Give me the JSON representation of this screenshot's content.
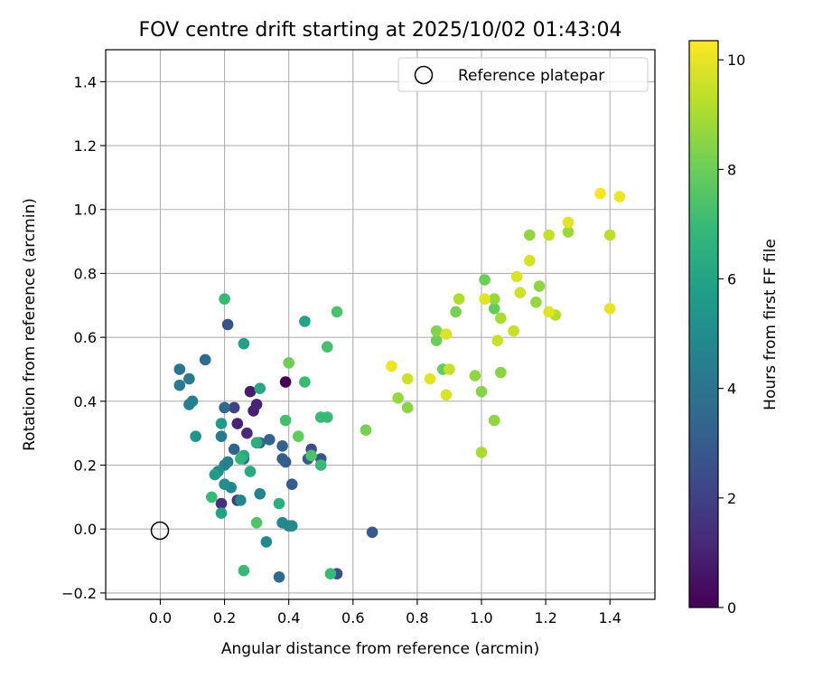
{
  "chart_data": {
    "type": "scatter",
    "title": "FOV centre drift starting at 2025/10/02 01:43:04",
    "xlabel": "Angular distance from reference (arcmin)",
    "ylabel": "Rotation from reference (arcmin)",
    "xlim": [
      -0.17,
      1.54
    ],
    "ylim": [
      -0.22,
      1.5
    ],
    "xticks": [
      0.0,
      0.2,
      0.4,
      0.6,
      0.8,
      1.0,
      1.2,
      1.4
    ],
    "xtick_labels": [
      "0.0",
      "0.2",
      "0.4",
      "0.6",
      "0.8",
      "1.0",
      "1.2",
      "1.4"
    ],
    "yticks": [
      -0.2,
      0.0,
      0.2,
      0.4,
      0.6,
      0.8,
      1.0,
      1.2,
      1.4
    ],
    "ytick_labels": [
      "−0.2",
      "0.0",
      "0.2",
      "0.4",
      "0.6",
      "0.8",
      "1.0",
      "1.2",
      "1.4"
    ],
    "grid": true,
    "legend": {
      "position": "top-right",
      "entries": [
        {
          "label": "Reference platepar",
          "marker": "open-circle"
        }
      ]
    },
    "reference_point": {
      "x": 0.0,
      "y": 0.0,
      "label": "Reference platepar"
    },
    "colorbar": {
      "label": "Hours from first FF file",
      "colormap": "viridis",
      "range": [
        0,
        10.35
      ],
      "ticks": [
        0,
        2,
        4,
        6,
        8,
        10
      ],
      "tick_labels": [
        "0",
        "2",
        "4",
        "6",
        "8",
        "10"
      ]
    },
    "colormap_stops": [
      "#440154",
      "#482878",
      "#3e4989",
      "#31688e",
      "#26828e",
      "#1f9e89",
      "#35b779",
      "#6ece58",
      "#b5de2b",
      "#fde725"
    ],
    "points": [
      [
        0.39,
        0.46,
        0.0
      ],
      [
        0.24,
        0.33,
        1.0
      ],
      [
        0.28,
        0.43,
        0.8
      ],
      [
        0.29,
        0.37,
        0.9
      ],
      [
        0.3,
        0.39,
        1.0
      ],
      [
        0.3,
        0.27,
        1.2
      ],
      [
        0.24,
        0.09,
        1.6
      ],
      [
        0.19,
        0.08,
        1.4
      ],
      [
        0.27,
        0.3,
        1.3
      ],
      [
        0.23,
        0.38,
        2.0
      ],
      [
        0.21,
        0.64,
        2.6
      ],
      [
        0.47,
        0.25,
        2.4
      ],
      [
        0.5,
        0.22,
        2.7
      ],
      [
        0.55,
        -0.14,
        2.5
      ],
      [
        0.66,
        -0.01,
        2.9
      ],
      [
        0.41,
        0.14,
        3.0
      ],
      [
        0.39,
        0.21,
        3.0
      ],
      [
        0.38,
        0.22,
        3.1
      ],
      [
        0.46,
        0.22,
        3.0
      ],
      [
        0.23,
        0.25,
        3.2
      ],
      [
        0.34,
        0.28,
        3.3
      ],
      [
        0.38,
        0.26,
        3.2
      ],
      [
        0.31,
        0.27,
        3.3
      ],
      [
        0.26,
        0.22,
        3.5
      ],
      [
        0.37,
        -0.15,
        3.6
      ],
      [
        0.2,
        0.38,
        3.4
      ],
      [
        0.14,
        0.53,
        3.6
      ],
      [
        0.06,
        0.5,
        4.0
      ],
      [
        0.06,
        0.45,
        4.3
      ],
      [
        0.09,
        0.47,
        4.2
      ],
      [
        0.1,
        0.4,
        4.4
      ],
      [
        0.09,
        0.39,
        4.5
      ],
      [
        0.19,
        0.29,
        4.2
      ],
      [
        0.21,
        0.21,
        4.4
      ],
      [
        0.2,
        0.2,
        4.5
      ],
      [
        0.31,
        0.11,
        4.6
      ],
      [
        0.25,
        0.09,
        4.8
      ],
      [
        0.22,
        0.13,
        4.7
      ],
      [
        0.38,
        0.02,
        4.8
      ],
      [
        0.4,
        0.01,
        4.7
      ],
      [
        0.41,
        0.01,
        4.9
      ],
      [
        0.33,
        -0.04,
        4.9
      ],
      [
        0.18,
        0.18,
        5.0
      ],
      [
        0.2,
        0.14,
        5.1
      ],
      [
        0.11,
        0.29,
        5.4
      ],
      [
        0.19,
        0.33,
        5.6
      ],
      [
        0.17,
        0.17,
        5.7
      ],
      [
        0.19,
        0.05,
        5.9
      ],
      [
        0.26,
        0.58,
        5.9
      ],
      [
        0.45,
        0.65,
        6.0
      ],
      [
        0.31,
        0.44,
        6.1
      ],
      [
        0.26,
        0.23,
        6.3
      ],
      [
        0.28,
        0.18,
        6.3
      ],
      [
        0.37,
        0.08,
        6.5
      ],
      [
        0.3,
        0.27,
        6.5
      ],
      [
        0.2,
        0.72,
        7.0
      ],
      [
        0.25,
        0.22,
        6.7
      ],
      [
        0.16,
        0.1,
        7.0
      ],
      [
        0.26,
        -0.13,
        7.0
      ],
      [
        0.45,
        0.46,
        7.0
      ],
      [
        0.5,
        0.35,
        7.0
      ],
      [
        0.52,
        0.35,
        7.0
      ],
      [
        0.39,
        0.34,
        7.2
      ],
      [
        0.5,
        0.2,
        7.0
      ],
      [
        0.53,
        -0.14,
        7.0
      ],
      [
        0.55,
        0.68,
        7.4
      ],
      [
        0.52,
        0.57,
        7.3
      ],
      [
        0.47,
        0.23,
        7.4
      ],
      [
        0.3,
        0.02,
        7.5
      ],
      [
        0.43,
        0.29,
        7.8
      ],
      [
        0.4,
        0.52,
        8.0
      ],
      [
        0.64,
        0.31,
        8.2
      ],
      [
        0.77,
        0.38,
        8.5
      ],
      [
        0.74,
        0.41,
        8.7
      ],
      [
        0.86,
        0.59,
        8.0
      ],
      [
        0.86,
        0.62,
        8.4
      ],
      [
        0.88,
        0.5,
        7.9
      ],
      [
        0.92,
        0.68,
        8.2
      ],
      [
        0.98,
        0.48,
        8.6
      ],
      [
        1.0,
        0.43,
        8.4
      ],
      [
        1.01,
        0.78,
        8.0
      ],
      [
        1.04,
        0.69,
        7.9
      ],
      [
        1.04,
        0.72,
        8.7
      ],
      [
        1.04,
        0.34,
        8.6
      ],
      [
        1.06,
        0.49,
        8.5
      ],
      [
        1.06,
        0.66,
        9.0
      ],
      [
        1.0,
        0.24,
        9.0
      ],
      [
        0.93,
        0.72,
        9.1
      ],
      [
        1.15,
        0.92,
        8.6
      ],
      [
        1.17,
        0.71,
        8.7
      ],
      [
        1.18,
        0.76,
        8.6
      ],
      [
        1.27,
        0.93,
        8.8
      ],
      [
        1.21,
        0.92,
        9.4
      ],
      [
        1.23,
        0.67,
        9.2
      ],
      [
        1.4,
        0.92,
        9.3
      ],
      [
        1.05,
        0.59,
        9.5
      ],
      [
        1.1,
        0.62,
        9.5
      ],
      [
        1.12,
        0.74,
        9.6
      ],
      [
        1.11,
        0.79,
        9.8
      ],
      [
        1.15,
        0.84,
        9.7
      ],
      [
        1.01,
        0.72,
        9.9
      ],
      [
        0.9,
        0.5,
        9.5
      ],
      [
        0.89,
        0.42,
        9.8
      ],
      [
        0.89,
        0.61,
        9.8
      ],
      [
        0.84,
        0.47,
        9.9
      ],
      [
        0.77,
        0.47,
        9.6
      ],
      [
        0.72,
        0.51,
        10.1
      ],
      [
        1.21,
        0.68,
        9.9
      ],
      [
        1.27,
        0.96,
        9.9
      ],
      [
        1.4,
        0.69,
        10.0
      ],
      [
        1.37,
        1.05,
        10.2
      ],
      [
        1.43,
        1.04,
        10.1
      ]
    ]
  }
}
